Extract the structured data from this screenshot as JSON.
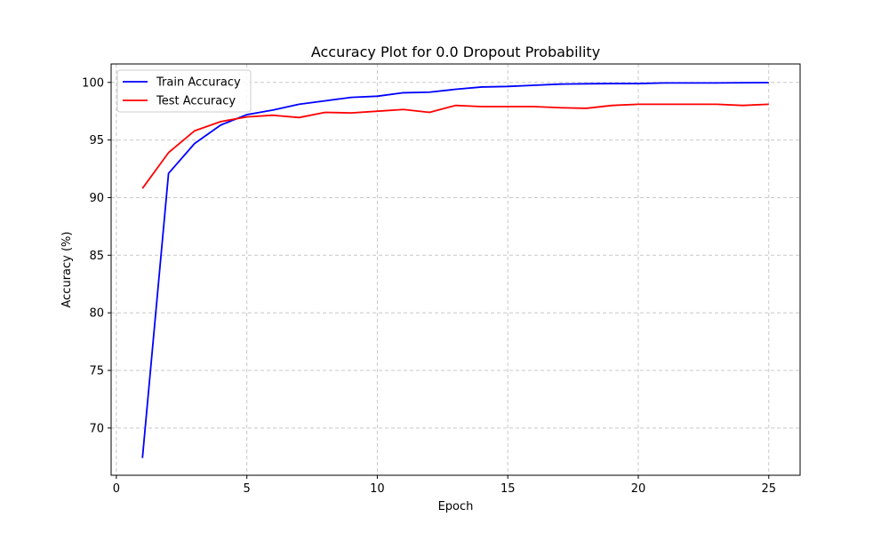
{
  "chart_data": {
    "type": "line",
    "title": "Accuracy Plot for 0.0 Dropout Probability",
    "xlabel": "Epoch",
    "ylabel": "Accuracy (%)",
    "xlim": [
      -0.2,
      26.2
    ],
    "ylim": [
      65.9,
      101.6
    ],
    "xticks": [
      0,
      5,
      10,
      15,
      20,
      25
    ],
    "yticks": [
      70,
      75,
      80,
      85,
      90,
      95,
      100
    ],
    "grid": true,
    "legend_position": "upper-left",
    "x": [
      1,
      2,
      3,
      4,
      5,
      6,
      7,
      8,
      9,
      10,
      11,
      12,
      13,
      14,
      15,
      16,
      17,
      18,
      19,
      20,
      21,
      22,
      23,
      24,
      25
    ],
    "series": [
      {
        "name": "Train Accuracy",
        "color": "#0000ff",
        "values": [
          67.4,
          92.1,
          94.7,
          96.3,
          97.2,
          97.6,
          98.1,
          98.4,
          98.7,
          98.8,
          99.1,
          99.15,
          99.4,
          99.6,
          99.65,
          99.75,
          99.85,
          99.88,
          99.9,
          99.9,
          99.95,
          99.95,
          99.95,
          99.97,
          99.98
        ]
      },
      {
        "name": "Test Accuracy",
        "color": "#ff0000",
        "values": [
          90.8,
          93.9,
          95.8,
          96.6,
          97.0,
          97.15,
          96.95,
          97.4,
          97.35,
          97.5,
          97.65,
          97.4,
          98.0,
          97.9,
          97.9,
          97.9,
          97.8,
          97.75,
          98.0,
          98.1,
          98.1,
          98.1,
          98.1,
          98.0,
          98.1
        ]
      }
    ]
  }
}
